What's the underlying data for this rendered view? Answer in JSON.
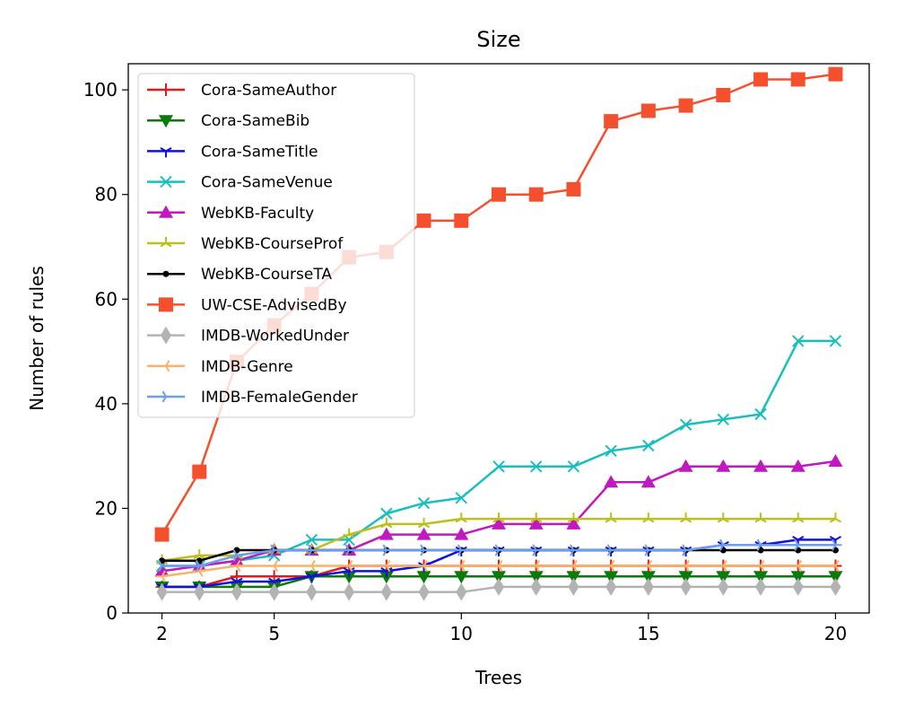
{
  "chart_data": {
    "type": "line",
    "title": "Size",
    "xlabel": "Trees",
    "ylabel": "Number of rules",
    "xlim": [
      1.1,
      20.9
    ],
    "ylim": [
      0,
      105
    ],
    "xticks": [
      2,
      5,
      10,
      15,
      20
    ],
    "yticks": [
      0,
      20,
      40,
      60,
      80,
      100
    ],
    "legend_position": "upper-left",
    "x": [
      2,
      3,
      4,
      5,
      6,
      7,
      8,
      9,
      10,
      11,
      12,
      13,
      14,
      15,
      16,
      17,
      18,
      19,
      20
    ],
    "series": [
      {
        "name": "Cora-SameAuthor",
        "color": "#e6191a",
        "marker": "plus",
        "values": [
          5,
          5,
          7,
          7,
          7,
          9,
          9,
          9,
          9,
          9,
          9,
          9,
          9,
          9,
          9,
          9,
          9,
          9,
          9
        ]
      },
      {
        "name": "Cora-SameBib",
        "color": "#0a7a0a",
        "marker": "triangle-down",
        "values": [
          5,
          5,
          5,
          5,
          7,
          7,
          7,
          7,
          7,
          7,
          7,
          7,
          7,
          7,
          7,
          7,
          7,
          7,
          7
        ]
      },
      {
        "name": "Cora-SameTitle",
        "color": "#1010e0",
        "marker": "tri-down",
        "values": [
          5,
          5,
          6,
          6,
          7,
          8,
          8,
          9,
          12,
          12,
          12,
          12,
          12,
          12,
          12,
          13,
          13,
          14,
          14
        ]
      },
      {
        "name": "Cora-SameVenue",
        "color": "#19bfbf",
        "marker": "x",
        "values": [
          9,
          9,
          10,
          11,
          14,
          14,
          19,
          21,
          22,
          28,
          28,
          28,
          31,
          32,
          36,
          37,
          38,
          52,
          52
        ]
      },
      {
        "name": "WebKB-Faculty",
        "color": "#bf19bf",
        "marker": "triangle-up",
        "values": [
          8,
          9,
          10,
          12,
          12,
          12,
          15,
          15,
          15,
          17,
          17,
          17,
          25,
          25,
          28,
          28,
          28,
          28,
          29
        ]
      },
      {
        "name": "WebKB-CourseProf",
        "color": "#bfbf19",
        "marker": "tri-up",
        "values": [
          10,
          11,
          11,
          12,
          12,
          15,
          17,
          17,
          18,
          18,
          18,
          18,
          18,
          18,
          18,
          18,
          18,
          18,
          18
        ]
      },
      {
        "name": "WebKB-CourseTA",
        "color": "#000000",
        "marker": "dot",
        "values": [
          10,
          10,
          12,
          12,
          12,
          12,
          12,
          12,
          12,
          12,
          12,
          12,
          12,
          12,
          12,
          12,
          12,
          12,
          12
        ]
      },
      {
        "name": "UW-CSE-AdvisedBy",
        "color": "#f5502e",
        "marker": "square",
        "values": [
          15,
          27,
          48,
          55,
          61,
          68,
          69,
          75,
          75,
          80,
          80,
          81,
          94,
          96,
          97,
          99,
          102,
          102,
          103
        ]
      },
      {
        "name": "IMDB-WorkedUnder",
        "color": "#b3b3b3",
        "marker": "diamond",
        "values": [
          4,
          4,
          4,
          4,
          4,
          4,
          4,
          4,
          4,
          5,
          5,
          5,
          5,
          5,
          5,
          5,
          5,
          5,
          5
        ]
      },
      {
        "name": "IMDB-Genre",
        "color": "#f5b36b",
        "marker": "tri-left",
        "values": [
          7,
          8,
          9,
          9,
          9,
          9,
          9,
          9,
          9,
          9,
          9,
          9,
          9,
          9,
          9,
          9,
          9,
          9,
          9
        ]
      },
      {
        "name": "IMDB-FemaleGender",
        "color": "#6b9ef0",
        "marker": "tri-right",
        "values": [
          9,
          9,
          11,
          12,
          12,
          12,
          12,
          12,
          12,
          12,
          12,
          12,
          12,
          12,
          12,
          13,
          13,
          13,
          13
        ]
      }
    ]
  }
}
